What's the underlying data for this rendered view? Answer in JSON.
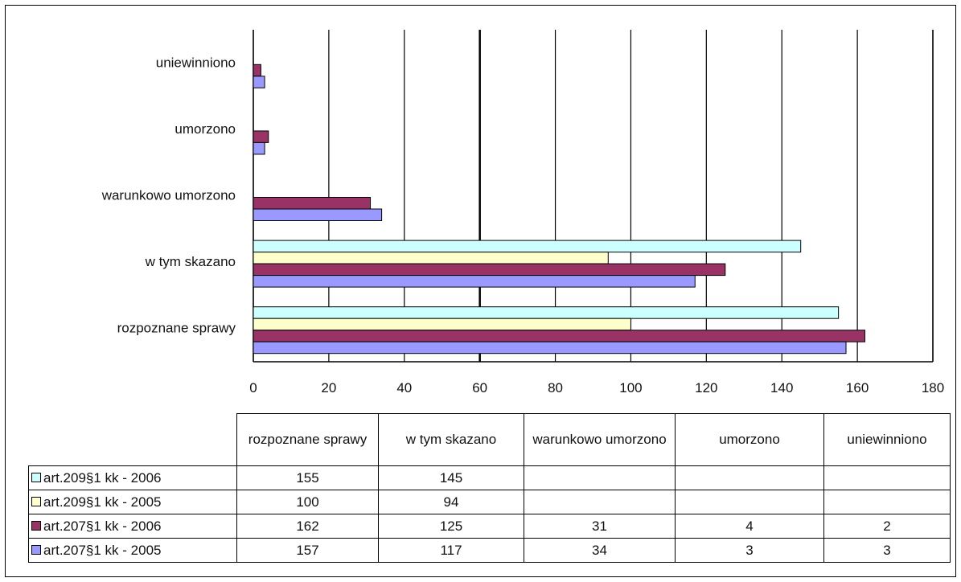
{
  "chart_data": {
    "type": "bar",
    "orientation": "horizontal",
    "categories": [
      "rozpoznane sprawy",
      "w tym skazano",
      "warunkowo umorzono",
      "umorzono",
      "uniewinniono"
    ],
    "xlim": [
      0,
      180
    ],
    "xticks": [
      "0",
      "20",
      "40",
      "60",
      "80",
      "100",
      "120",
      "140",
      "160",
      "180"
    ],
    "grid": true,
    "series": [
      {
        "name": "art.209§1 kk - 2006",
        "color": "#ccffff",
        "values": [
          155,
          145,
          null,
          null,
          null
        ]
      },
      {
        "name": "art.209§1 kk - 2005",
        "color": "#ffffcc",
        "values": [
          100,
          94,
          null,
          null,
          null
        ]
      },
      {
        "name": "art.207§1 kk - 2006",
        "color": "#993366",
        "values": [
          162,
          125,
          31,
          4,
          2
        ]
      },
      {
        "name": "art.207§1 kk - 2005",
        "color": "#9999ff",
        "values": [
          157,
          117,
          34,
          3,
          3
        ]
      }
    ],
    "legend": "data table below chart"
  },
  "table": {
    "headers": [
      "rozpoznane sprawy",
      "w tym skazano",
      "warunkowo umorzono",
      "umorzono",
      "uniewinniono"
    ],
    "rows": [
      {
        "series": "art.209§1 kk - 2006",
        "color": "#ccffff",
        "cells": [
          "155",
          "145",
          "",
          "",
          ""
        ]
      },
      {
        "series": "art.209§1 kk - 2005",
        "color": "#ffffcc",
        "cells": [
          "100",
          "94",
          "",
          "",
          ""
        ]
      },
      {
        "series": "art.207§1 kk - 2006",
        "color": "#993366",
        "cells": [
          "162",
          "125",
          "31",
          "4",
          "2"
        ]
      },
      {
        "series": "art.207§1 kk - 2005",
        "color": "#9999ff",
        "cells": [
          "157",
          "117",
          "34",
          "3",
          "3"
        ]
      }
    ]
  }
}
